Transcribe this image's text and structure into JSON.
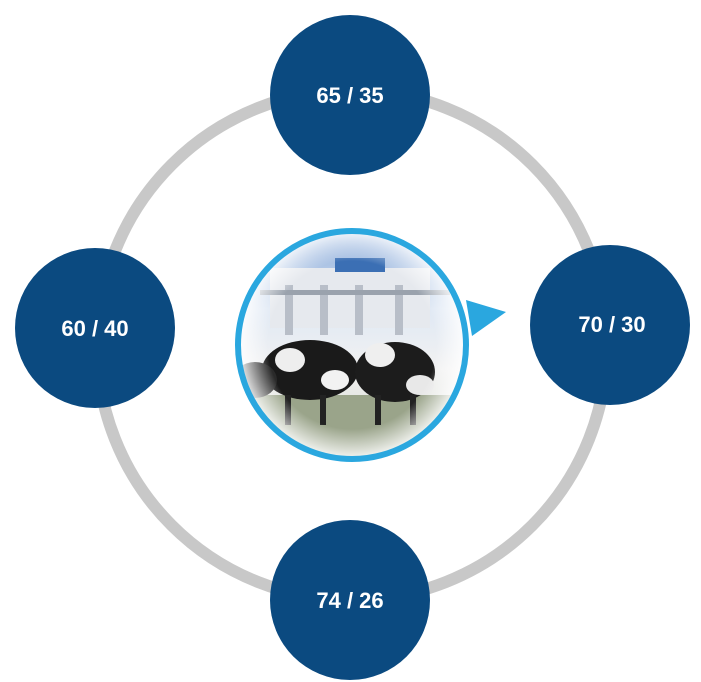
{
  "nodes": [
    {
      "label": "65 / 35"
    },
    {
      "label": "70 / 30"
    },
    {
      "label": "74 / 26"
    },
    {
      "label": "60 / 40"
    }
  ]
}
